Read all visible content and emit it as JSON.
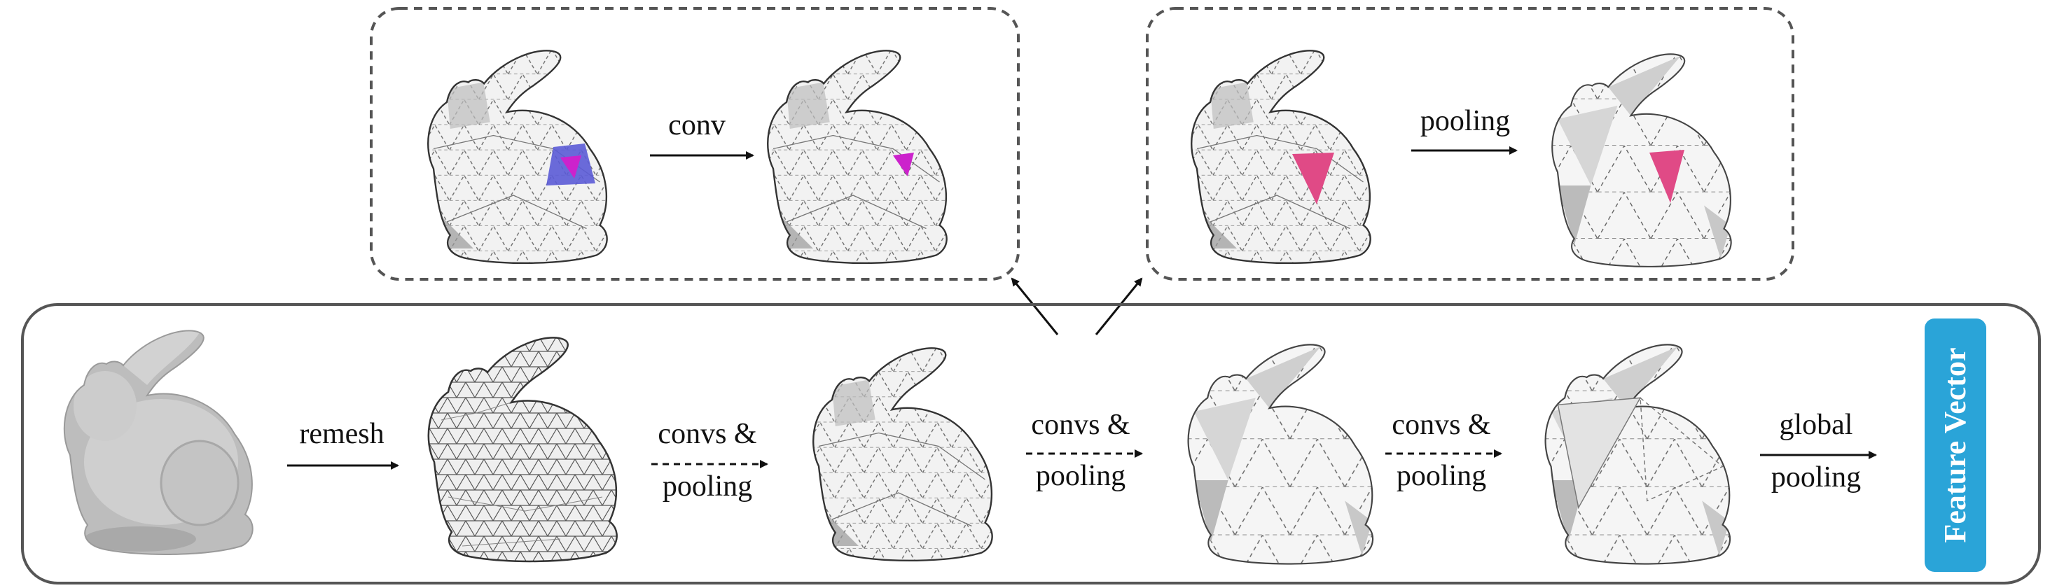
{
  "labels": {
    "conv": "conv",
    "pooling_top": "pooling",
    "remesh": "remesh",
    "stage1_line1": "convs &",
    "stage1_line2": "pooling",
    "stage2_line1": "convs &",
    "stage2_line2": "pooling",
    "stage3_line1": "convs &",
    "stage3_line2": "pooling",
    "global_line1": "global",
    "global_line2": "pooling",
    "feature_vector": "Feature Vector"
  },
  "colors": {
    "frame": "#555555",
    "feature_box": "#2aa4d8",
    "conv_face_blue": "#5b5bd6",
    "conv_face_magenta": "#cc22cc",
    "pool_face_pink": "#e04a86",
    "mesh_fill": "#ececec",
    "mesh_stroke": "#444444"
  },
  "icons": {
    "input_mesh": "bunny-solid-icon",
    "mesh": "bunny-wireframe-icon"
  }
}
